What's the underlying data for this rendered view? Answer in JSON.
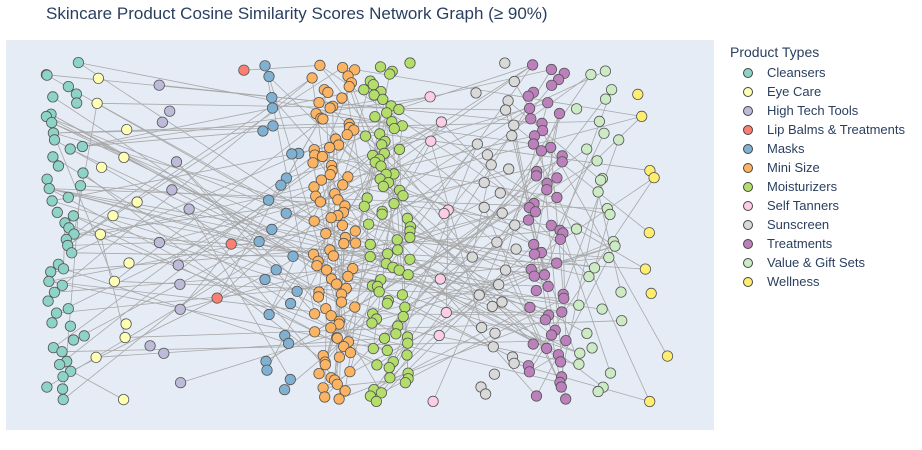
{
  "chart_data": {
    "type": "network",
    "title": "Skincare Product Cosine Similarity Scores Network Graph (≥ 90%)",
    "xlabel": "",
    "ylabel": "",
    "grid": false,
    "show_axes": false,
    "legend_title": "Product Types",
    "legend_position": "right",
    "edge_color": "#a8a8a8",
    "background": "#e5ecf6",
    "categories": [
      {
        "name": "Cleansers",
        "color": "#8dd3c7"
      },
      {
        "name": "Eye Care",
        "color": "#ffffb3"
      },
      {
        "name": "High Tech Tools",
        "color": "#bebada"
      },
      {
        "name": "Lip Balms & Treatments",
        "color": "#fb8072"
      },
      {
        "name": "Masks",
        "color": "#80b1d3"
      },
      {
        "name": "Mini Size",
        "color": "#fdb462"
      },
      {
        "name": "Moisturizers",
        "color": "#b3de69"
      },
      {
        "name": "Self Tanners",
        "color": "#fccde5"
      },
      {
        "name": "Sunscreen",
        "color": "#d9d9d9"
      },
      {
        "name": "Treatments",
        "color": "#bc80bd"
      },
      {
        "name": "Value & Gift Sets",
        "color": "#ccebc5"
      },
      {
        "name": "Wellness",
        "color": "#ffed6f"
      }
    ]
  }
}
